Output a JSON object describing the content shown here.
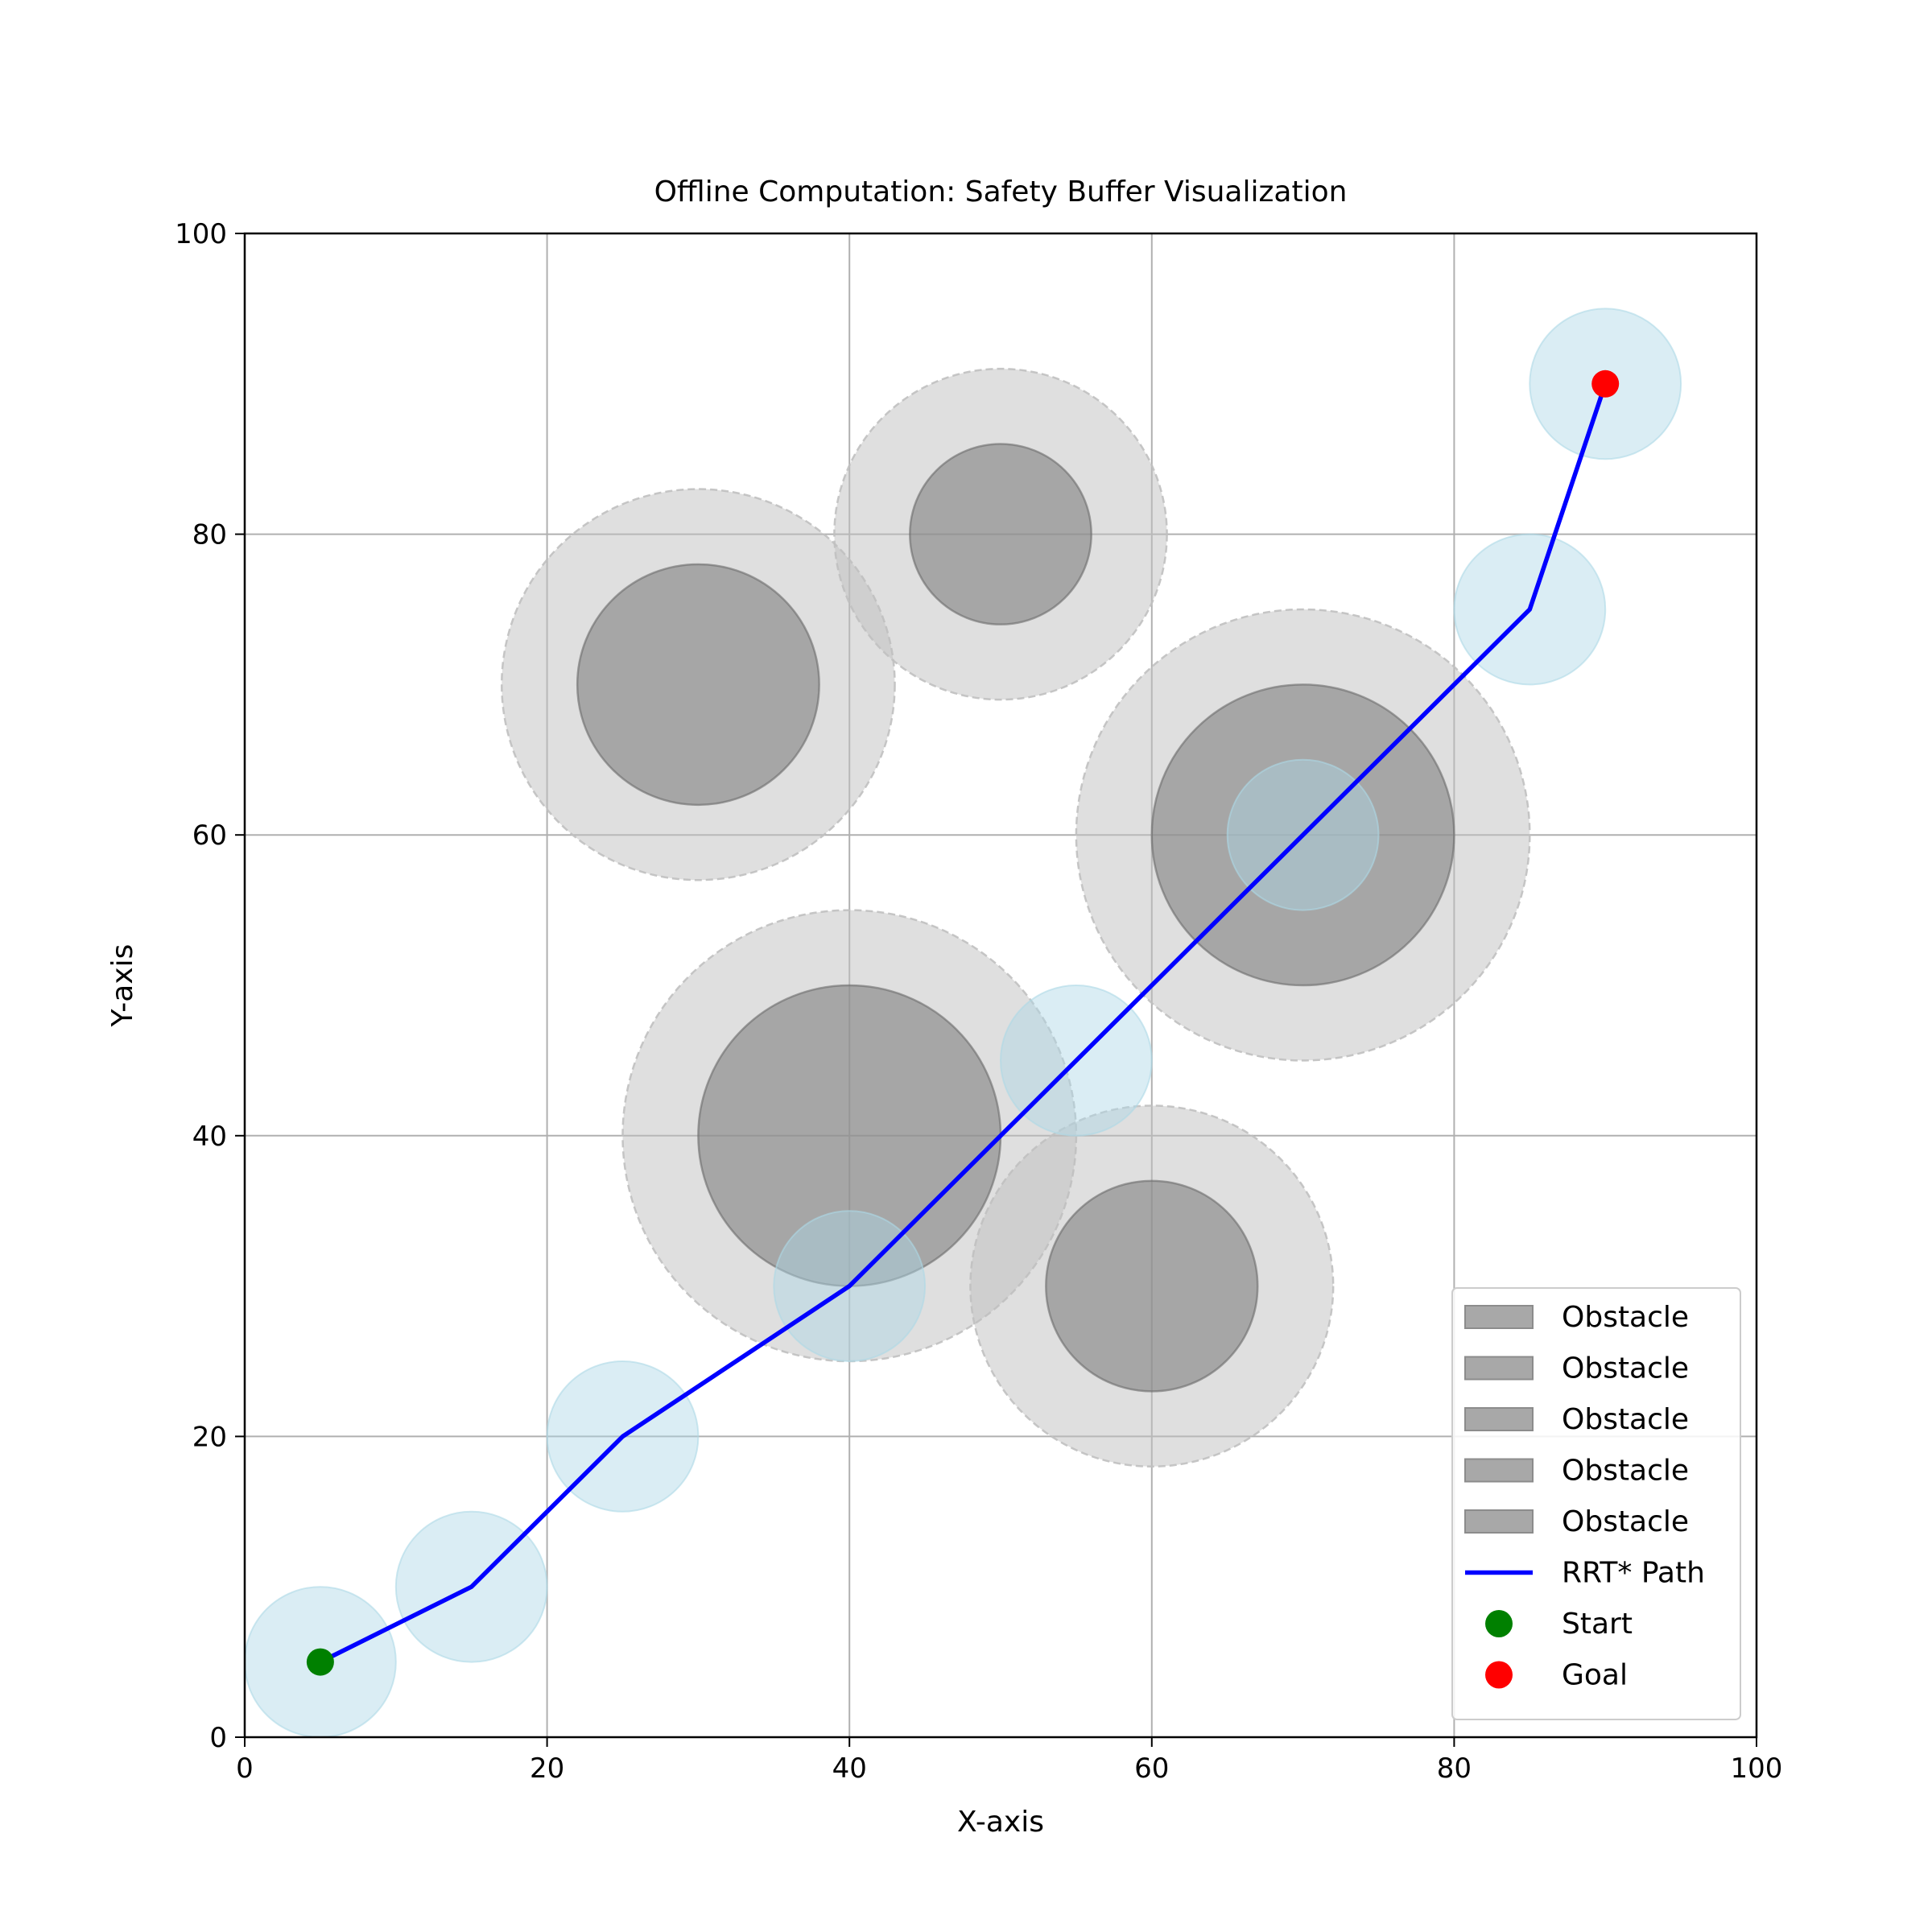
{
  "chart_data": {
    "type": "scatter",
    "title": "Offline Computation: Safety Buffer Visualization",
    "xlabel": "X-axis",
    "ylabel": "Y-axis",
    "xlim": [
      0,
      100
    ],
    "ylim": [
      0,
      100
    ],
    "xticks": [
      0,
      20,
      40,
      60,
      80,
      100
    ],
    "yticks": [
      0,
      20,
      40,
      60,
      80,
      100
    ],
    "grid": true,
    "legend_position": "lower-right",
    "obstacles": [
      {
        "name": "Obstacle",
        "x": 30,
        "y": 70,
        "r": 8,
        "buffer_r": 13
      },
      {
        "name": "Obstacle",
        "x": 50,
        "y": 80,
        "r": 6,
        "buffer_r": 11
      },
      {
        "name": "Obstacle",
        "x": 70,
        "y": 60,
        "r": 10,
        "buffer_r": 15
      },
      {
        "name": "Obstacle",
        "x": 40,
        "y": 40,
        "r": 10,
        "buffer_r": 15
      },
      {
        "name": "Obstacle",
        "x": 60,
        "y": 30,
        "r": 7,
        "buffer_r": 12
      }
    ],
    "path": {
      "name": "RRT* Path",
      "x": [
        5,
        15,
        25,
        40,
        55,
        70,
        85,
        90
      ],
      "y": [
        5,
        10,
        20,
        30,
        45,
        60,
        75,
        90
      ],
      "node_buffer_r": 5
    },
    "start": {
      "name": "Start",
      "x": 5,
      "y": 5
    },
    "goal": {
      "name": "Goal",
      "x": 90,
      "y": 90
    },
    "colors": {
      "obstacle": "#808080",
      "buffer": "#c0c0c0",
      "path": "#0000ff",
      "node_buffer": "#add8e6",
      "start": "#008000",
      "goal": "#ff0000",
      "grid": "#b0b0b0"
    }
  }
}
